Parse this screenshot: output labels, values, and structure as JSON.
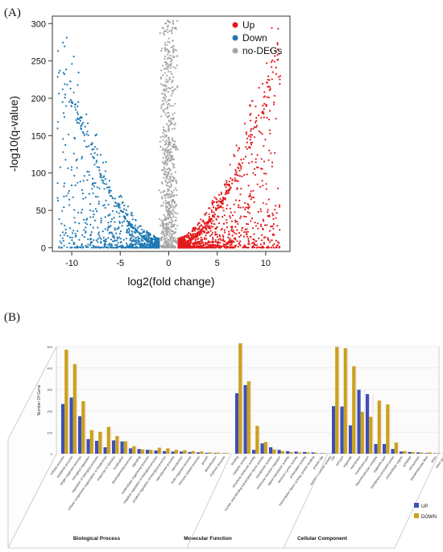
{
  "panels": {
    "a_label": "(A)",
    "b_label": "(B)"
  },
  "chart_data": [
    {
      "type": "scatter",
      "xlabel": "log2(fold change)",
      "ylabel": "-log10(q-value)",
      "xlim": [
        -12,
        12.5
      ],
      "ylim": [
        -5,
        310
      ],
      "xticks": [
        -10,
        -5,
        0,
        5,
        10
      ],
      "yticks": [
        0,
        50,
        100,
        150,
        200,
        250,
        300
      ],
      "legend_position": "top-right",
      "grid": false,
      "series": [
        {
          "name": "Up",
          "color": "#e31a1c",
          "x_range": [
            1,
            12
          ],
          "count_shown": 1400
        },
        {
          "name": "Down",
          "color": "#1f78b4",
          "x_range": [
            -11,
            -1
          ],
          "count_shown": 1000
        },
        {
          "name": "no-DEGs",
          "color": "#a6a6a6",
          "x_range": [
            -1,
            1
          ],
          "count_shown": 700
        }
      ]
    },
    {
      "type": "bar",
      "ylabel": "Number Of Gene",
      "ylim": [
        0,
        500
      ],
      "yticks": [
        0,
        100,
        200,
        300,
        400,
        500
      ],
      "legend_position": "bottom-right",
      "groups": [
        {
          "name": "Biological Process",
          "categories": [
            "cellular process",
            "metabolic process",
            "single-organism process",
            "biological regulation",
            "regulation of biological process",
            "cellular component organization or biogenesis",
            "response to stimulus",
            "localization",
            "developmental process",
            "signaling",
            "multicellular organismal process",
            "negative regulation of biological process",
            "positive regulation of biological process",
            "reproductive process",
            "reproduction",
            "multi-organism process",
            "immune system process",
            "growth",
            "detoxification",
            "rhythmic process"
          ],
          "up": [
            232,
            262,
            175,
            68,
            60,
            30,
            62,
            57,
            25,
            22,
            18,
            15,
            12,
            10,
            10,
            8,
            6,
            4,
            3,
            2
          ],
          "down": [
            485,
            418,
            245,
            110,
            102,
            125,
            82,
            58,
            35,
            20,
            18,
            28,
            25,
            18,
            16,
            12,
            10,
            6,
            5,
            3
          ]
        },
        {
          "name": "Molecular Function",
          "categories": [
            "binding",
            "catalytic activity",
            "structural molecule activity",
            "nucleic acid binding transcription factor activity",
            "transporter activity",
            "molecular function regulator",
            "signal transducer activity",
            "electron carrier activity",
            "antioxidant activity",
            "transcription factor activity, protein binding",
            "protein tag",
            "nutrient reservoir activity"
          ],
          "up": [
            282,
            320,
            18,
            48,
            30,
            18,
            12,
            10,
            8,
            6,
            2,
            1
          ],
          "down": [
            515,
            338,
            130,
            55,
            20,
            12,
            8,
            6,
            6,
            4,
            3,
            1
          ]
        },
        {
          "name": "Cellular Component",
          "categories": [
            "cell",
            "cell part",
            "organelle",
            "membrane",
            "membrane part",
            "macromolecular complex",
            "organelle part",
            "membrane-enclosed lumen",
            "extracellular region",
            "symplast",
            "cell junction",
            "supramolecular fiber",
            "virion",
            "virion part",
            "nucleoid"
          ],
          "up": [
            222,
            220,
            132,
            298,
            278,
            45,
            45,
            22,
            10,
            8,
            6,
            3,
            2,
            1,
            1
          ],
          "down": [
            498,
            492,
            408,
            195,
            172,
            248,
            230,
            52,
            12,
            8,
            6,
            6,
            3,
            2,
            1
          ]
        }
      ],
      "series": [
        {
          "name": "UP",
          "color": "#3d4fb8"
        },
        {
          "name": "DOWN",
          "color": "#c9a21a"
        }
      ]
    }
  ]
}
